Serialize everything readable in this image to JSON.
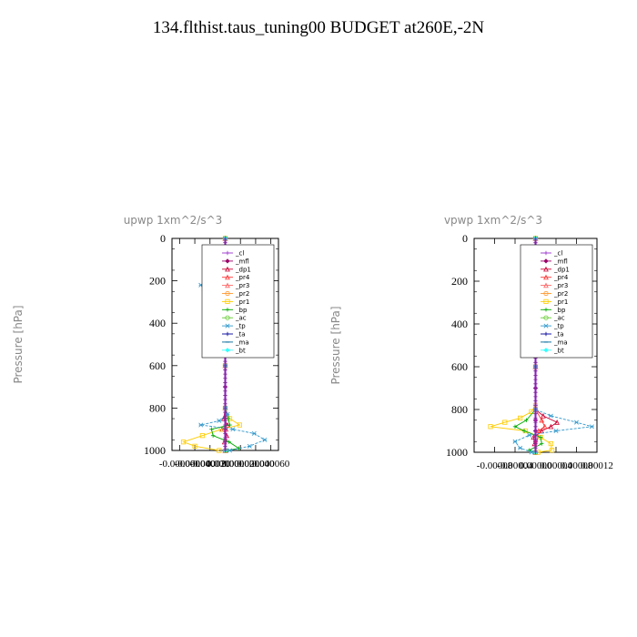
{
  "title": "134.flthist.taus_tuning00  BUDGET at260E,-2N",
  "chart_data": [
    {
      "type": "line",
      "title": "upwp   1xm^2/s^3",
      "ylabel": "Pressure [hPa]",
      "xlim": [
        -7e-05,
        7e-05
      ],
      "ylim": [
        1000,
        0
      ],
      "xticks": [
        "-0.000060",
        "-0.000040",
        "-0.000020",
        "0.000000",
        "0.000020",
        "0.000040",
        "0.000060"
      ],
      "xtick_values": [
        -6e-05,
        -4e-05,
        -2e-05,
        0,
        2e-05,
        4e-05,
        6e-05
      ],
      "yticks": [
        0,
        200,
        400,
        600,
        800,
        1000
      ],
      "legend": [
        "_cl",
        "_mfl",
        "_dp1",
        "_pr4",
        "_pr3",
        "_pr2",
        "_pr1",
        "_bp",
        "_ac",
        "_tp",
        "_ta",
        "_ma",
        "_bt"
      ],
      "legend_position": "top-right",
      "series": [
        {
          "name": "_cl",
          "color": "#9933cc",
          "marker": "plus",
          "y": [
            0,
            100,
            200,
            300,
            400,
            500,
            600,
            700,
            800,
            850,
            900,
            950,
            1000
          ],
          "x": [
            0,
            0,
            0,
            0,
            0,
            0,
            0,
            0,
            0,
            0,
            0,
            0,
            0
          ]
        },
        {
          "name": "_mfl",
          "color": "#990066",
          "marker": "diamond",
          "y": [
            0,
            100,
            200,
            300,
            400,
            500,
            600,
            700,
            800,
            850,
            900,
            950,
            1000
          ],
          "x": [
            0,
            0,
            0,
            0,
            0,
            0,
            0,
            0,
            0,
            0,
            0,
            0,
            0
          ]
        },
        {
          "name": "_dp1",
          "color": "#cc0033",
          "marker": "triangle",
          "y": [
            0,
            100,
            150,
            200,
            250,
            300,
            400,
            600,
            800,
            850,
            880,
            900,
            930,
            960,
            1000
          ],
          "x": [
            0,
            0,
            1e-06,
            2e-06,
            1e-06,
            0,
            0,
            0,
            0,
            -2e-06,
            3e-06,
            -4e-06,
            2e-06,
            -1e-06,
            0
          ]
        },
        {
          "name": "_pr4",
          "color": "#ff3333",
          "marker": "triangle",
          "y": [
            0,
            200,
            400,
            600,
            800,
            900,
            950,
            1000
          ],
          "x": [
            0,
            0,
            0,
            0,
            0,
            1e-06,
            0,
            0
          ]
        },
        {
          "name": "_pr3",
          "color": "#ff6666",
          "marker": "triangle",
          "y": [
            0,
            200,
            400,
            600,
            800,
            900,
            1000
          ],
          "x": [
            0,
            0,
            0,
            0,
            0,
            0,
            0
          ]
        },
        {
          "name": "_pr2",
          "color": "#ff9933",
          "marker": "circle",
          "y": [
            0,
            200,
            400,
            600,
            800,
            1000
          ],
          "x": [
            0,
            0,
            0,
            0,
            0,
            0
          ]
        },
        {
          "name": "_pr1",
          "color": "#ffcc00",
          "marker": "square",
          "y": [
            0,
            100,
            150,
            180,
            200,
            230,
            260,
            290,
            320,
            400,
            600,
            800,
            850,
            880,
            900,
            930,
            960,
            980,
            1000
          ],
          "x": [
            0,
            1e-06,
            6e-06,
            1e-05,
            1.4e-05,
            1.7e-05,
            1.3e-05,
            8e-06,
            2e-06,
            0,
            0,
            0,
            6e-06,
            1.9e-05,
            -5e-06,
            -3e-05,
            -5.5e-05,
            -4e-05,
            -8e-06
          ]
        },
        {
          "name": "_bp",
          "color": "#00aa00",
          "marker": "plus",
          "y": [
            0,
            200,
            400,
            600,
            800,
            850,
            880,
            900,
            930,
            960,
            990,
            1000
          ],
          "x": [
            0,
            0,
            0,
            0,
            0,
            4e-06,
            6e-06,
            -1.8e-05,
            -1.6e-05,
            5e-06,
            1.8e-05,
            3e-06
          ]
        },
        {
          "name": "_ac",
          "color": "#66cc33",
          "marker": "circle",
          "y": [
            0,
            200,
            400,
            600,
            800,
            1000
          ],
          "x": [
            0,
            0,
            0,
            0,
            0,
            0
          ]
        },
        {
          "name": "_tp",
          "color": "#3399cc",
          "marker": "star",
          "y": [
            0,
            100,
            130,
            160,
            180,
            200,
            220,
            240,
            260,
            290,
            320,
            360,
            400,
            600,
            800,
            830,
            860,
            880,
            900,
            920,
            950,
            980,
            1000
          ],
          "x": [
            0,
            -1e-06,
            -4e-06,
            -1.2e-05,
            -1.8e-05,
            -2.5e-05,
            -3.2e-05,
            -2.8e-05,
            -2e-05,
            -1e-05,
            -4e-06,
            -2e-06,
            0,
            0,
            0,
            3e-06,
            -8e-06,
            -3.2e-05,
            1e-05,
            3.8e-05,
            5.2e-05,
            3.2e-05,
            6e-06
          ]
        },
        {
          "name": "_ta",
          "color": "#000099",
          "marker": "plus",
          "y": [
            0,
            200,
            400,
            600,
            800,
            1000
          ],
          "x": [
            0,
            0,
            0,
            0,
            0,
            0
          ]
        },
        {
          "name": "_ma",
          "color": "#006699",
          "marker": "dash",
          "y": [
            0,
            200,
            400,
            600,
            800,
            1000
          ],
          "x": [
            0,
            0,
            0,
            0,
            0,
            0
          ]
        },
        {
          "name": "_bt",
          "color": "#33ffff",
          "marker": "diamond",
          "y": [
            0,
            200,
            400,
            600,
            800,
            1000
          ],
          "x": [
            0,
            0,
            0,
            0,
            0,
            0
          ]
        }
      ]
    },
    {
      "type": "line",
      "title": "vpwp   1xm^2/s^3",
      "ylabel": "Pressure [hPa]",
      "xlim": [
        -0.00012,
        0.00012
      ],
      "ylim": [
        1000,
        0
      ],
      "xticks": [
        "-0.00008",
        "-0.00004",
        "0.00000",
        "0.00004",
        "0.00008",
        "0.00012"
      ],
      "xtick_values": [
        -8e-05,
        -4e-05,
        0,
        4e-05,
        8e-05,
        0.00012
      ],
      "yticks": [
        0,
        200,
        400,
        600,
        800,
        1000
      ],
      "legend": [
        "_cl",
        "_mfl",
        "_dp1",
        "_pr4",
        "_pr3",
        "_pr2",
        "_pr1",
        "_bp",
        "_ac",
        "_tp",
        "_ta",
        "_ma",
        "_bt"
      ],
      "legend_position": "top-right",
      "series": [
        {
          "name": "_cl",
          "color": "#9933cc",
          "marker": "plus",
          "y": [
            0,
            100,
            200,
            300,
            400,
            500,
            600,
            700,
            800,
            850,
            900,
            950,
            1000
          ],
          "x": [
            0,
            0,
            0,
            0,
            0,
            0,
            0,
            0,
            0,
            0,
            0,
            0,
            0
          ]
        },
        {
          "name": "_mfl",
          "color": "#990066",
          "marker": "diamond",
          "y": [
            0,
            100,
            200,
            300,
            400,
            500,
            600,
            700,
            800,
            850,
            900,
            950,
            1000
          ],
          "x": [
            0,
            0,
            0,
            0,
            0,
            0,
            0,
            0,
            0,
            0,
            0,
            0,
            0
          ]
        },
        {
          "name": "_dp1",
          "color": "#cc0033",
          "marker": "triangle",
          "y": [
            0,
            200,
            400,
            600,
            800,
            830,
            860,
            880,
            900,
            930,
            960,
            1000
          ],
          "x": [
            0,
            0,
            0,
            0,
            0,
            1.5e-05,
            4.2e-05,
            3e-05,
            1.2e-05,
            -4e-06,
            -2e-06,
            0
          ]
        },
        {
          "name": "_pr4",
          "color": "#ff3333",
          "marker": "triangle",
          "y": [
            0,
            200,
            400,
            600,
            800,
            850,
            880,
            900,
            1000
          ],
          "x": [
            0,
            0,
            0,
            0,
            0,
            1.2e-05,
            1.8e-05,
            6e-06,
            0
          ]
        },
        {
          "name": "_pr3",
          "color": "#ff6666",
          "marker": "triangle",
          "y": [
            0,
            200,
            400,
            600,
            800,
            1000
          ],
          "x": [
            0,
            0,
            0,
            0,
            0,
            0
          ]
        },
        {
          "name": "_pr2",
          "color": "#ff9933",
          "marker": "circle",
          "y": [
            0,
            200,
            400,
            600,
            800,
            1000
          ],
          "x": [
            0,
            0,
            0,
            0,
            0,
            0
          ]
        },
        {
          "name": "_pr1",
          "color": "#ffcc00",
          "marker": "square",
          "y": [
            0,
            140,
            170,
            200,
            230,
            260,
            300,
            340,
            400,
            600,
            780,
            810,
            840,
            860,
            880,
            900,
            930,
            960,
            990,
            1000
          ],
          "x": [
            0,
            2e-06,
            8e-06,
            1.2e-05,
            1.1e-05,
            8e-06,
            4e-06,
            2e-06,
            0,
            0,
            0,
            -8e-06,
            -3e-05,
            -6e-05,
            -8.8e-05,
            -2e-05,
            1e-05,
            3e-05,
            3.2e-05,
            5e-06
          ]
        },
        {
          "name": "_bp",
          "color": "#00aa00",
          "marker": "plus",
          "y": [
            0,
            200,
            400,
            600,
            800,
            850,
            880,
            900,
            930,
            960,
            990,
            1000
          ],
          "x": [
            0,
            0,
            0,
            0,
            0,
            -1.8e-05,
            -4e-05,
            -2.2e-05,
            1e-05,
            1.2e-05,
            -1.2e-05,
            -3e-06
          ]
        },
        {
          "name": "_ac",
          "color": "#66cc33",
          "marker": "circle",
          "y": [
            0,
            200,
            400,
            600,
            800,
            1000
          ],
          "x": [
            0,
            0,
            0,
            0,
            0,
            0
          ]
        },
        {
          "name": "_tp",
          "color": "#3399cc",
          "marker": "star",
          "y": [
            0,
            120,
            150,
            180,
            200,
            220,
            250,
            280,
            320,
            400,
            600,
            800,
            830,
            860,
            880,
            900,
            920,
            950,
            980,
            1000
          ],
          "x": [
            0,
            -1e-06,
            -3e-06,
            -5e-06,
            -4e-06,
            -3e-06,
            -2e-06,
            -1e-06,
            0,
            0,
            0,
            0,
            3e-05,
            8e-05,
            0.00011,
            4e-05,
            -1.2e-05,
            -4e-05,
            -3e-05,
            -8e-06
          ]
        },
        {
          "name": "_ta",
          "color": "#000099",
          "marker": "plus",
          "y": [
            0,
            200,
            400,
            600,
            800,
            1000
          ],
          "x": [
            0,
            0,
            0,
            0,
            0,
            0
          ]
        },
        {
          "name": "_ma",
          "color": "#006699",
          "marker": "dash",
          "y": [
            0,
            200,
            400,
            600,
            800,
            1000
          ],
          "x": [
            0,
            0,
            0,
            0,
            0,
            0
          ]
        },
        {
          "name": "_bt",
          "color": "#33ffff",
          "marker": "diamond",
          "y": [
            0,
            200,
            400,
            600,
            800,
            1000
          ],
          "x": [
            0,
            0,
            0,
            0,
            0,
            0
          ]
        }
      ]
    }
  ]
}
